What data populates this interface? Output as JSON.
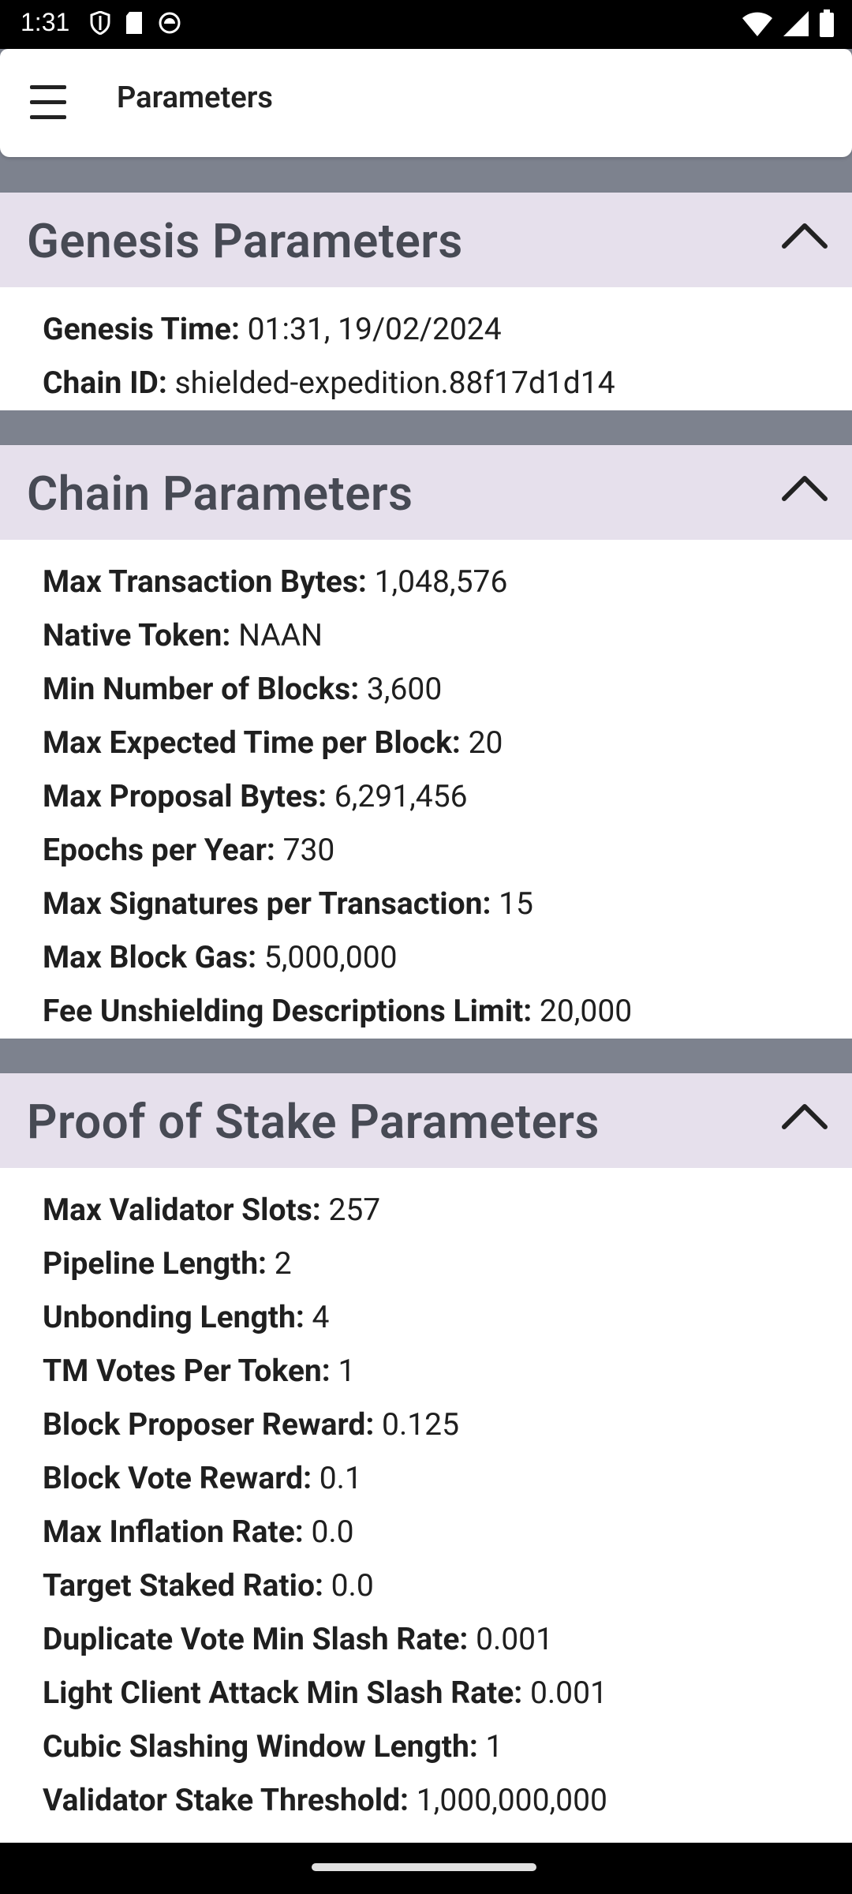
{
  "status": {
    "time": "1:31"
  },
  "appbar": {
    "title": "Parameters"
  },
  "genesis": {
    "title": "Genesis Parameters",
    "rows": [
      {
        "key": "Genesis Time:",
        "value": "01:31, 19/02/2024"
      },
      {
        "key": "Chain ID:",
        "value": "shielded-expedition.88f17d1d14"
      }
    ]
  },
  "chain": {
    "title": "Chain Parameters",
    "rows": [
      {
        "key": "Max Transaction Bytes:",
        "value": "1,048,576"
      },
      {
        "key": "Native Token:",
        "value": "NAAN"
      },
      {
        "key": "Min Number of Blocks:",
        "value": "3,600"
      },
      {
        "key": "Max Expected Time per Block:",
        "value": "20"
      },
      {
        "key": "Max Proposal Bytes:",
        "value": "6,291,456"
      },
      {
        "key": "Epochs per Year:",
        "value": "730"
      },
      {
        "key": "Max Signatures per Transaction:",
        "value": "15"
      },
      {
        "key": "Max Block Gas:",
        "value": "5,000,000"
      },
      {
        "key": "Fee Unshielding Descriptions Limit:",
        "value": "20,000"
      }
    ]
  },
  "pos": {
    "title": "Proof of Stake Parameters",
    "rows": [
      {
        "key": "Max Validator Slots:",
        "value": "257"
      },
      {
        "key": "Pipeline Length:",
        "value": "2"
      },
      {
        "key": "Unbonding Length:",
        "value": "4"
      },
      {
        "key": "TM Votes Per Token:",
        "value": "1"
      },
      {
        "key": "Block Proposer Reward:",
        "value": "0.125"
      },
      {
        "key": "Block Vote Reward:",
        "value": "0.1"
      },
      {
        "key": "Max Inflation Rate:",
        "value": "0.0"
      },
      {
        "key": "Target Staked Ratio:",
        "value": "0.0"
      },
      {
        "key": "Duplicate Vote Min Slash Rate:",
        "value": "0.001"
      },
      {
        "key": "Light Client Attack Min Slash Rate:",
        "value": "0.001"
      },
      {
        "key": "Cubic Slashing Window Length:",
        "value": "1"
      },
      {
        "key": "Validator Stake Threshold:",
        "value": "1,000,000,000"
      }
    ]
  }
}
